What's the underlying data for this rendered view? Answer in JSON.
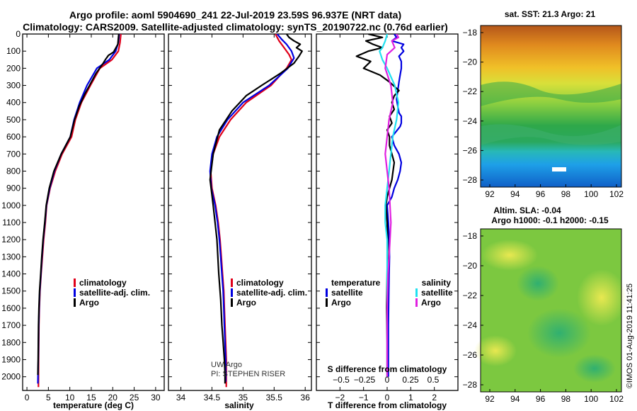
{
  "title_line1": "Argo profile: aoml 5904690_241 22-Jul-2019 23.59S 96.937E (NRT data)",
  "title_line2": "Climatology: CARS2009. Satellite-adjusted climatology: synTS_20190722.nc (0.76d earlier)",
  "colors": {
    "climatology": "#e0001a",
    "satellite": "#0000e0",
    "argo": "#000000",
    "sal_satellite": "#20e0f0",
    "sal_argo": "#e020e0"
  },
  "chart_data": [
    {
      "id": "temperature",
      "type": "line",
      "xlabel": "temperature (deg C)",
      "ylabel": "",
      "xlim": [
        -1,
        32
      ],
      "ylim": [
        2080,
        0
      ],
      "xticks": [
        0,
        5,
        10,
        15,
        20,
        25,
        30
      ],
      "xtick_labels": [
        "0",
        "5",
        "10",
        "15",
        "20",
        "25",
        "30"
      ],
      "yticks": [
        0,
        100,
        200,
        300,
        400,
        500,
        600,
        700,
        800,
        900,
        1000,
        1100,
        1200,
        1300,
        1400,
        1500,
        1600,
        1700,
        1800,
        1900,
        2000
      ],
      "ytick_labels": [
        "0",
        "100",
        "200",
        "300",
        "400",
        "500",
        "600",
        "700",
        "800",
        "900",
        "1000",
        "1100",
        "1200",
        "1300",
        "1400",
        "1500",
        "1600",
        "1700",
        "1800",
        "1900",
        "2000"
      ],
      "legend": [
        "climatology",
        "satellite-adj. clim.",
        "Argo"
      ],
      "series": [
        {
          "name": "climatology",
          "color_key": "climatology",
          "x": [
            21.9,
            21.7,
            21.3,
            19.8,
            17.0,
            14.8,
            12.7,
            11.3,
            10.4,
            8.2,
            6.6,
            5.4,
            4.6,
            4.3,
            3.9,
            3.6,
            3.3,
            3.05,
            2.9,
            2.8,
            2.72,
            2.68
          ],
          "y": [
            0,
            50,
            100,
            150,
            200,
            300,
            400,
            500,
            600,
            700,
            800,
            900,
            1000,
            1100,
            1200,
            1300,
            1400,
            1500,
            1600,
            1700,
            1900,
            2060
          ]
        },
        {
          "name": "satellite-adj. clim.",
          "color_key": "satellite",
          "x": [
            21.5,
            21.3,
            20.7,
            19.2,
            16.3,
            14.0,
            12.3,
            11.0,
            10.1,
            8.0,
            6.4,
            5.3,
            4.55,
            4.2,
            3.8,
            3.5,
            3.25,
            3.0,
            2.85,
            2.75,
            2.65,
            2.55
          ],
          "y": [
            0,
            50,
            100,
            150,
            200,
            300,
            400,
            500,
            600,
            700,
            800,
            900,
            1000,
            1100,
            1200,
            1300,
            1400,
            1500,
            1600,
            1700,
            1900,
            2040
          ]
        },
        {
          "name": "Argo",
          "color_key": "argo",
          "x": [
            21.4,
            21.2,
            20.2,
            19.0,
            18.4,
            17.8,
            16.1,
            14.6,
            13.5,
            12.2,
            11.1,
            10.1,
            8.0,
            6.3,
            5.2,
            4.5,
            4.15,
            3.75,
            3.45,
            3.2,
            2.95,
            2.8,
            2.7,
            2.62,
            2.55
          ],
          "y": [
            0,
            60,
            105,
            125,
            145,
            170,
            230,
            300,
            350,
            420,
            500,
            600,
            700,
            800,
            900,
            1000,
            1100,
            1200,
            1300,
            1400,
            1500,
            1600,
            1700,
            1900,
            1990
          ]
        }
      ]
    },
    {
      "id": "salinity",
      "type": "line",
      "xlabel": "salinity",
      "xlim": [
        33.8,
        36.1
      ],
      "ylim": [
        2080,
        0
      ],
      "xticks": [
        34,
        34.5,
        35,
        35.5,
        36
      ],
      "xtick_labels": [
        "34",
        "34.5",
        "35",
        "35.5",
        "36"
      ],
      "legend": [
        "climatology",
        "satellite-adj. clim.",
        "Argo"
      ],
      "annotation": [
        "UW Argo",
        "PI: STEPHEN RISER"
      ],
      "series": [
        {
          "name": "climatology",
          "color_key": "climatology",
          "x": [
            35.52,
            35.58,
            35.66,
            35.74,
            35.78,
            35.7,
            35.45,
            35.05,
            34.8,
            34.62,
            34.52,
            34.48,
            34.5,
            34.56,
            34.6,
            34.63,
            34.65,
            34.67,
            34.69,
            34.7,
            34.71,
            34.72,
            34.73,
            34.73
          ],
          "y": [
            0,
            40,
            80,
            120,
            150,
            200,
            300,
            400,
            500,
            600,
            700,
            800,
            900,
            1000,
            1100,
            1200,
            1300,
            1400,
            1500,
            1600,
            1700,
            1800,
            1900,
            2060
          ]
        },
        {
          "name": "satellite-adj. clim.",
          "color_key": "satellite",
          "x": [
            35.55,
            35.62,
            35.7,
            35.78,
            35.82,
            35.72,
            35.42,
            35.0,
            34.75,
            34.58,
            34.5,
            34.47,
            34.49,
            34.55,
            34.59,
            34.62,
            34.64,
            34.66,
            34.68,
            34.69,
            34.7,
            34.71,
            34.72,
            34.72
          ],
          "y": [
            0,
            30,
            60,
            100,
            140,
            200,
            300,
            400,
            500,
            600,
            700,
            800,
            900,
            1000,
            1100,
            1200,
            1300,
            1400,
            1500,
            1600,
            1700,
            1800,
            1900,
            2030
          ]
        },
        {
          "name": "Argo",
          "color_key": "argo",
          "x": [
            35.7,
            35.74,
            35.82,
            35.92,
            35.86,
            35.95,
            35.9,
            35.82,
            35.6,
            35.3,
            35.05,
            34.82,
            34.62,
            34.52,
            34.47,
            34.52,
            34.58,
            34.61,
            34.64,
            34.66,
            34.68,
            34.7,
            34.71,
            34.71
          ],
          "y": [
            0,
            20,
            40,
            60,
            80,
            100,
            130,
            170,
            230,
            300,
            360,
            450,
            560,
            700,
            850,
            1000,
            1200,
            1400,
            1550,
            1700,
            1800,
            1900,
            1980,
            2040
          ]
        }
      ]
    },
    {
      "id": "difference",
      "type": "line",
      "xlabel": "T difference from climatology",
      "xlim": [
        -3,
        3
      ],
      "ylim": [
        2080,
        0
      ],
      "xticks": [
        -2,
        -1,
        0,
        1,
        2
      ],
      "xtick_labels": [
        "−2",
        "−1",
        "0",
        "1",
        "2"
      ],
      "top_axis_label": "S difference from climatology",
      "top_axis_ticks": [
        "−0.5",
        "−0.25",
        "0",
        "0.25",
        "0.5"
      ],
      "legend_temperature_title": "temperature",
      "legend_salinity_title": "salinity",
      "legend": [
        "satellite",
        "Argo",
        "satellite",
        "Argo"
      ],
      "series": [
        {
          "name": "T satellite",
          "color_key": "satellite",
          "x": [
            0.3,
            0.4,
            0.2,
            0.7,
            0.6,
            0.7,
            0.5,
            0.6,
            0.6,
            0.55,
            0.5,
            0.45,
            0.4,
            0.45,
            0.5,
            0.6,
            0.6,
            0.55,
            0.2,
            0.3,
            0.5,
            0.6,
            0.55,
            0.45,
            0.3,
            0.2,
            0.0,
            0.05,
            0.08,
            0.1,
            0.08,
            0.07,
            0.06,
            0.05,
            0.05,
            0.05
          ],
          "y": [
            0,
            20,
            40,
            60,
            80,
            100,
            130,
            160,
            200,
            240,
            280,
            330,
            380,
            420,
            460,
            480,
            520,
            540,
            600,
            650,
            700,
            750,
            800,
            850,
            900,
            950,
            1000,
            1100,
            1200,
            1300,
            1400,
            1500,
            1600,
            1700,
            1800,
            2000
          ]
        },
        {
          "name": "T Argo",
          "color_key": "argo",
          "x": [
            -0.8,
            -0.2,
            -0.9,
            -0.6,
            -0.2,
            -0.8,
            -1.3,
            -0.7,
            -1.0,
            -0.3,
            0.1,
            0.5,
            0.3,
            0.2,
            0.3,
            0.1,
            0.2,
            0.0,
            0.1,
            0.1,
            0.2,
            0.3,
            0.25,
            0.2,
            0.1,
            0.0,
            -0.05,
            0.0,
            0.02,
            0.0,
            -0.02,
            0.0,
            0.0,
            0.0
          ],
          "y": [
            0,
            20,
            40,
            60,
            80,
            100,
            130,
            160,
            200,
            240,
            280,
            330,
            360,
            400,
            440,
            480,
            520,
            560,
            600,
            650,
            700,
            750,
            800,
            850,
            900,
            950,
            1000,
            1100,
            1200,
            1400,
            1600,
            1800,
            1900,
            2000
          ]
        }
      ],
      "series_salinity": [
        {
          "name": "S satellite",
          "color_key": "sal_satellite",
          "s": [
            0.0,
            -0.02,
            -0.05,
            -0.08,
            -0.05,
            0.0,
            0.08,
            0.12,
            0.1,
            0.06,
            0.04,
            0.02,
            0.0,
            -0.02,
            -0.02,
            0.0,
            0.0,
            0.0,
            0.0,
            0.0,
            0.0
          ],
          "y": [
            0,
            40,
            80,
            100,
            150,
            200,
            300,
            400,
            500,
            600,
            700,
            800,
            900,
            1000,
            1100,
            1200,
            1400,
            1600,
            1800,
            1900,
            2000
          ]
        },
        {
          "name": "S Argo",
          "color_key": "sal_argo",
          "s": [
            0.1,
            0.12,
            0.05,
            0.08,
            0.0,
            -0.02,
            0.04,
            0.06,
            0.02,
            0.0,
            -0.02,
            0.0,
            0.02,
            0.03,
            0.04,
            0.03,
            0.02,
            0.01,
            0.0,
            0.0,
            0.0
          ],
          "y": [
            0,
            20,
            40,
            80,
            120,
            200,
            300,
            400,
            500,
            600,
            700,
            800,
            900,
            1000,
            1100,
            1200,
            1300,
            1400,
            1600,
            1800,
            2000
          ]
        }
      ]
    }
  ],
  "map_sst": {
    "title": "sat. SST: 21.3 Argo: 21",
    "xticks": [
      "92",
      "94",
      "96",
      "98",
      "100",
      "102"
    ],
    "yticks": [
      "−18",
      "−20",
      "−22",
      "−24",
      "−26",
      "−28"
    ]
  },
  "map_sla": {
    "title1": "Altim. SLA: -0.04",
    "title2": "Argo h1000: -0.1 h2000: -0.15",
    "xticks": [
      "92",
      "94",
      "96",
      "98",
      "100",
      "102"
    ],
    "yticks": [
      "−18",
      "−20",
      "−22",
      "−24",
      "−26",
      "−28"
    ]
  },
  "watermark": "©IMOS 01-Aug-2019 11:41:25"
}
